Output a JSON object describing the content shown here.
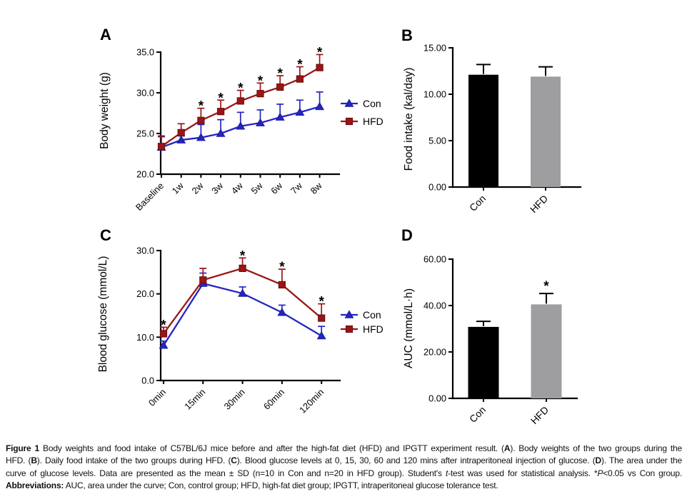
{
  "page": {
    "background": "#ffffff"
  },
  "colors": {
    "con_line": "#2525c3",
    "con_edge": "#1b1b9e",
    "hfd_line": "#9a1515",
    "hfd_edge": "#670d0d",
    "con_bar": "#000000",
    "hfd_bar": "#9e9ea0",
    "axis": "#000000"
  },
  "chart_data": [
    {
      "id": "A",
      "panel_label": "A",
      "type": "line",
      "title": "",
      "xlabel": "",
      "ylabel": "Body weight (g)",
      "categories": [
        "Baseline",
        "1w",
        "2w",
        "3w",
        "4w",
        "5w",
        "6w",
        "7w",
        "8w"
      ],
      "ylim": [
        20,
        35
      ],
      "yticks": [
        20,
        25,
        30,
        35
      ],
      "ytick_labels": [
        "20.0",
        "25.0",
        "30.0",
        "35.0"
      ],
      "grid": false,
      "legend_position": "right",
      "series": [
        {
          "name": "Con",
          "marker": "triangle",
          "color": "#2525c3",
          "edge": "#1b1b9e",
          "values": [
            23.3,
            24.2,
            24.5,
            25.0,
            25.9,
            26.3,
            27.0,
            27.6,
            28.3
          ],
          "sd": [
            1.4,
            0.5,
            1.6,
            1.7,
            1.7,
            1.6,
            1.6,
            1.5,
            1.8
          ]
        },
        {
          "name": "HFD",
          "marker": "square",
          "color": "#9a1515",
          "edge": "#670d0d",
          "values": [
            23.4,
            25.1,
            26.6,
            27.7,
            29.0,
            29.9,
            30.7,
            31.7,
            33.1
          ],
          "sd": [
            1.2,
            1.1,
            1.5,
            1.4,
            1.3,
            1.3,
            1.4,
            1.5,
            1.6
          ]
        }
      ],
      "sig_stars": {
        "series": "HFD",
        "categories": [
          "2w",
          "3w",
          "4w",
          "5w",
          "6w",
          "7w",
          "8w"
        ],
        "symbol": "*"
      }
    },
    {
      "id": "B",
      "panel_label": "B",
      "type": "bar",
      "title": "",
      "xlabel": "",
      "ylabel": "Food intake (kal/day)",
      "categories": [
        "Con",
        "HFD"
      ],
      "values": [
        12.1,
        11.9
      ],
      "sd": [
        1.1,
        1.05
      ],
      "bar_colors": [
        "#000000",
        "#9e9ea0"
      ],
      "ylim": [
        0,
        15
      ],
      "yticks": [
        0,
        5,
        10,
        15
      ],
      "ytick_labels": [
        "0.00",
        "5.00",
        "10.00",
        "15.00"
      ],
      "grid": false,
      "sig_stars": null
    },
    {
      "id": "C",
      "panel_label": "C",
      "type": "line",
      "title": "",
      "xlabel": "",
      "ylabel": "Blood glucose (mmol/L)",
      "categories": [
        "0min",
        "15min",
        "30min",
        "60min",
        "120min"
      ],
      "ylim": [
        0,
        30
      ],
      "yticks": [
        0,
        10,
        20,
        30
      ],
      "ytick_labels": [
        "0.0",
        "10.0",
        "20.0",
        "30.0"
      ],
      "grid": false,
      "legend_position": "right",
      "series": [
        {
          "name": "Con",
          "marker": "triangle",
          "color": "#2525c3",
          "edge": "#1b1b9e",
          "values": [
            8.1,
            22.4,
            20.1,
            15.7,
            10.3
          ],
          "sd": [
            1.0,
            2.4,
            1.5,
            1.7,
            2.2
          ]
        },
        {
          "name": "HFD",
          "marker": "square",
          "color": "#9a1515",
          "edge": "#670d0d",
          "values": [
            10.8,
            23.2,
            25.9,
            22.1,
            14.4
          ],
          "sd": [
            1.5,
            2.7,
            2.4,
            3.6,
            3.3
          ]
        }
      ],
      "sig_stars": {
        "series": "HFD",
        "categories": [
          "0min",
          "30min",
          "60min",
          "120min"
        ],
        "symbol": "*"
      }
    },
    {
      "id": "D",
      "panel_label": "D",
      "type": "bar",
      "title": "",
      "xlabel": "",
      "ylabel": "AUC (mmol/L·h)",
      "categories": [
        "Con",
        "HFD"
      ],
      "values": [
        30.8,
        40.5
      ],
      "sd": [
        2.4,
        4.7
      ],
      "bar_colors": [
        "#000000",
        "#9e9ea0"
      ],
      "ylim": [
        0,
        60
      ],
      "yticks": [
        0,
        20,
        40,
        60
      ],
      "ytick_labels": [
        "0.00",
        "20.00",
        "40.00",
        "60.00"
      ],
      "grid": false,
      "sig_stars": {
        "categories": [
          "HFD"
        ],
        "symbol": "*"
      }
    }
  ],
  "legend": {
    "con_label": "Con",
    "hfd_label": "HFD"
  },
  "caption": {
    "lines": [
      [
        {
          "t": "Figure 1",
          "b": true
        },
        {
          "t": " Body weights and food intake of C57BL/6J mice before and after the high-fat diet (HFD) and IPGTT experiment result. ("
        },
        {
          "t": "A",
          "b": true
        },
        {
          "t": "). Body weights of the two groups during the"
        }
      ],
      [
        {
          "t": "HFD. ("
        },
        {
          "t": "B",
          "b": true
        },
        {
          "t": "). Daily food intake of the two groups during HFD. ("
        },
        {
          "t": "C",
          "b": true
        },
        {
          "t": "). Blood glucose levels at 0, 15, 30, 60 and 120 mins after intraperitoneal injection of glucose. ("
        },
        {
          "t": "D",
          "b": true
        },
        {
          "t": "). The area under the"
        }
      ],
      [
        {
          "t": "curve of glucose levels. Data are presented as the mean ± SD (n=10 in Con and n=20 in HFD group). Student's "
        },
        {
          "t": "t",
          "i": true
        },
        {
          "t": "-test was used for statistical analysis. *"
        },
        {
          "t": "P",
          "i": true
        },
        {
          "t": "<0.05 vs Con group."
        }
      ],
      [
        {
          "t": "Abbreviations:",
          "b": true
        },
        {
          "t": " AUC, area under the curve; Con, control group; HFD, high-fat diet group; IPGTT, intraperitoneal glucose tolerance test."
        }
      ]
    ]
  }
}
